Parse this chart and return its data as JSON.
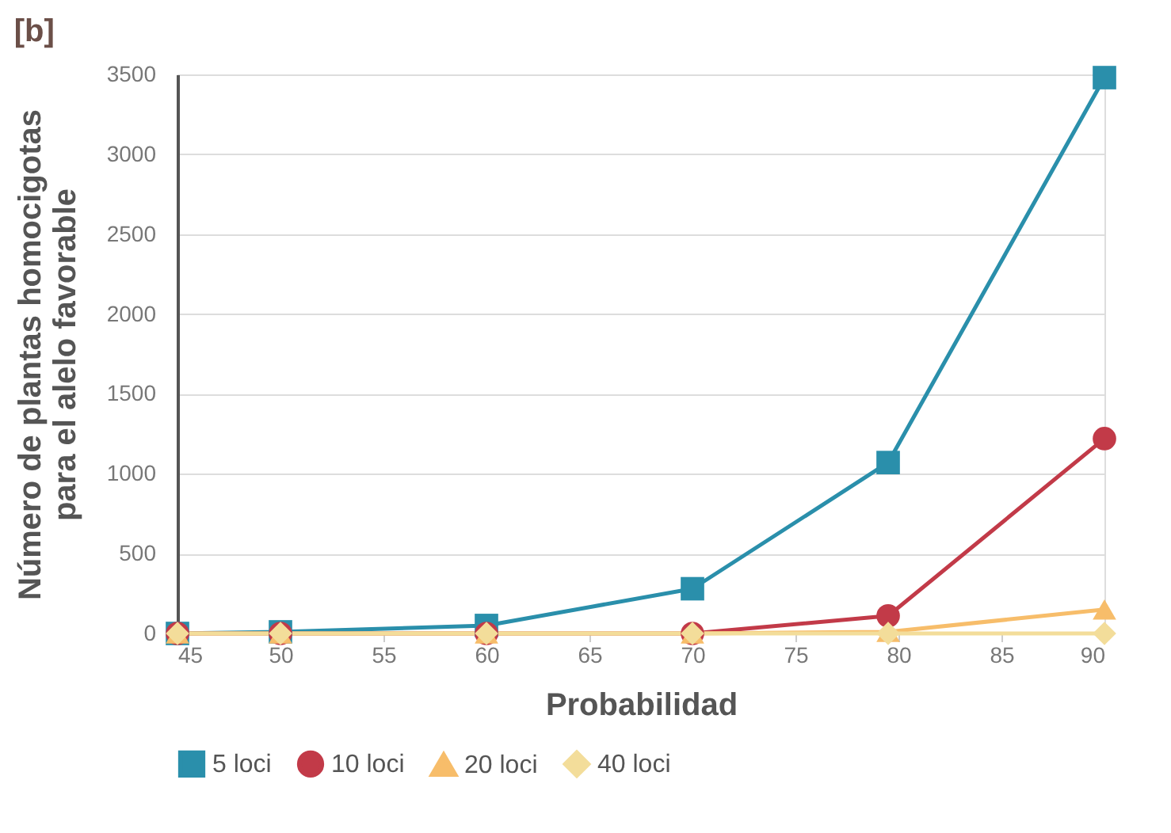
{
  "chart_data": {
    "type": "line",
    "title": "[b]",
    "xlabel": "Probabilidad",
    "ylabel": "Número de plantas homocigotas\npara el alelo favorable",
    "x": [
      45,
      50,
      60,
      70,
      79.5,
      90
    ],
    "series": [
      {
        "name": "5 loci",
        "color": "#2a8fab",
        "marker": "square",
        "values": [
          0,
          10,
          50,
          280,
          1070,
          3480
        ]
      },
      {
        "name": "10 loci",
        "color": "#c23a48",
        "marker": "circle",
        "values": [
          0,
          0,
          0,
          0,
          110,
          1220
        ]
      },
      {
        "name": "20 loci",
        "color": "#f7bd6a",
        "marker": "triangle",
        "values": [
          0,
          0,
          0,
          0,
          10,
          150
        ]
      },
      {
        "name": "40 loci",
        "color": "#f3dd9a",
        "marker": "diamond",
        "values": [
          0,
          0,
          0,
          0,
          0,
          0
        ]
      }
    ],
    "xlim": [
      45,
      90
    ],
    "xticks": [
      45,
      50,
      55,
      60,
      65,
      70,
      75,
      80,
      85,
      90
    ],
    "ylim": [
      0,
      3500
    ],
    "yticks": [
      0,
      500,
      1000,
      1500,
      2000,
      2500,
      3000,
      3500
    ],
    "grid": "y",
    "legend": "bottom",
    "line_style": "solid"
  }
}
